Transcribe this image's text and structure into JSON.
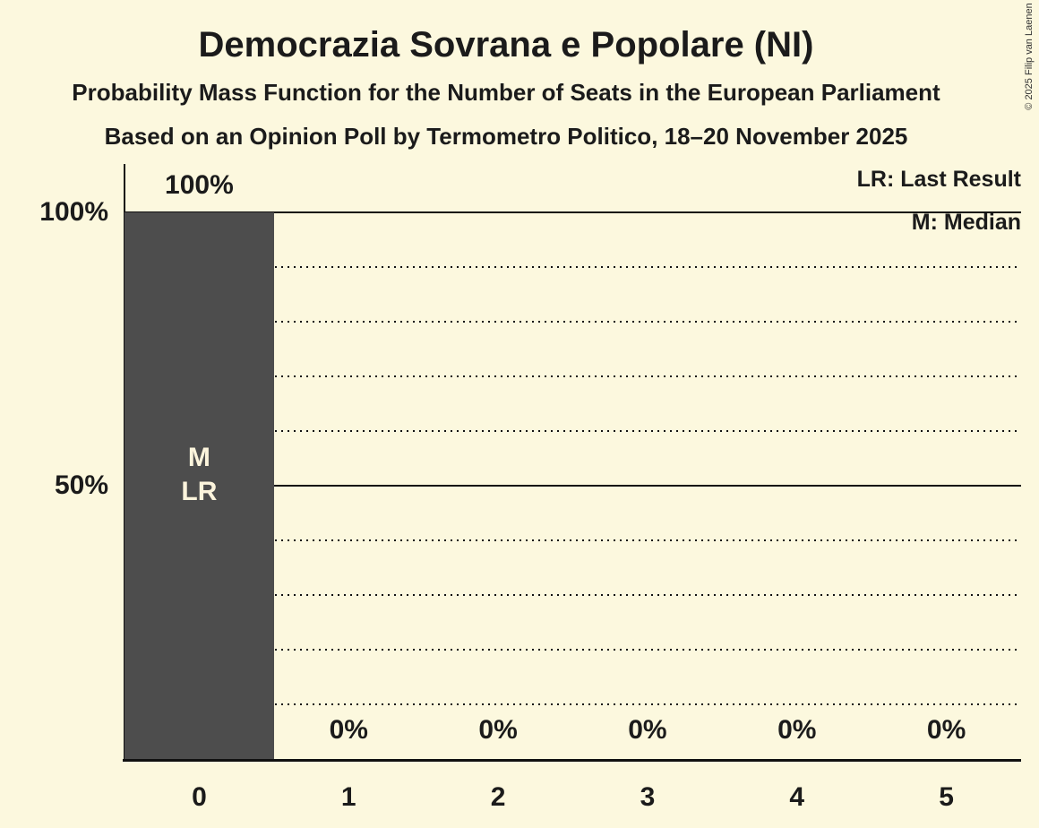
{
  "chart_data": {
    "type": "bar",
    "title": "Democrazia Sovrana e Popolare (NI)",
    "subtitle": "Probability Mass Function for the Number of Seats in the European Parliament",
    "caption": "Based on an Opinion Poll by Termometro Politico, 18–20 November 2025",
    "xlabel": "",
    "ylabel": "",
    "categories": [
      "0",
      "1",
      "2",
      "3",
      "4",
      "5"
    ],
    "values": [
      100,
      0,
      0,
      0,
      0,
      0
    ],
    "value_labels": [
      "100%",
      "0%",
      "0%",
      "0%",
      "0%",
      "0%"
    ],
    "ylim": [
      0,
      100
    ],
    "ytick_labels": [
      {
        "label": "100%",
        "value": 100
      },
      {
        "label": "50%",
        "value": 50
      }
    ],
    "gridlines": {
      "step": 10,
      "solid_at": [
        50,
        100
      ],
      "other_style": "dotted"
    },
    "legend": [
      "LR: Last Result",
      "M: Median"
    ],
    "legend_position": "top-right",
    "annotations": {
      "0": [
        "M",
        "LR"
      ]
    },
    "copyright": "© 2025 Filip van Laenen"
  },
  "colors": {
    "background": "#FCF8DE",
    "bar": "#4D4D4D",
    "bar_text": "#FCF4DC",
    "text": "#1B1B1B",
    "line": "#111111"
  }
}
